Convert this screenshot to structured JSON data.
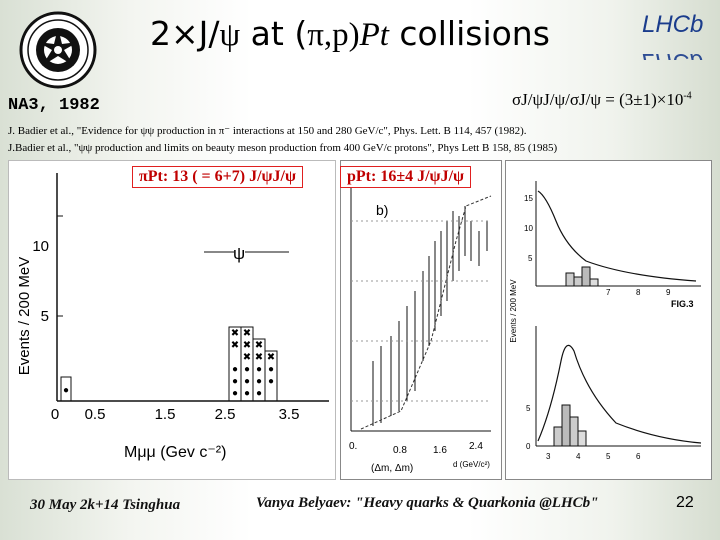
{
  "slide": {
    "title_prefix": "2×J/",
    "title_psi": "ψ",
    "title_mid": " at (",
    "title_beam": "π,p)",
    "title_target": "Pt",
    "title_suffix": " collisions",
    "ratio_text": "σJ/ψJ/ψ/σJ/ψ = (3±1)×10",
    "ratio_exp": "-4",
    "section_label": "NA3, 1982",
    "ref1": "J. Badier et al., \"Evidence for ψψ production in π⁻ interactions at 150 and 280 GeV/c\", Phys. Lett. B 114, 457 (1982).",
    "ref2": "J.Badier et al., \"ψψ production and limits on beauty meson production from 400 GeV/c protons\", Phys Lett B 158, 85 (1985)",
    "label_pi": "πPt: 13 ( = 6+7) J/ψJ/ψ",
    "label_p": "pPt: 16±4 J/ψJ/ψ",
    "footer_date": "30 May 2k+14 Tsinghua",
    "footer_author": "Vanya Belyaev: \"Heavy quarks & Quarkonia @LHCb\"",
    "page_number": "22",
    "logo_right_text": "LHCb"
  },
  "chart_data": [
    {
      "type": "bar",
      "ylabel": "Events / 200 MeV",
      "xlabel": "Mμμ (Gev c⁻²)",
      "y_ticks": [
        "5",
        "10"
      ],
      "x_ticks": [
        "0",
        "0.5",
        "1.5",
        "2.5",
        "3.5"
      ],
      "annotation": "ψ",
      "series": [
        {
          "name": "●",
          "values": [
            1,
            0,
            0,
            0,
            0,
            1,
            2,
            3,
            2,
            1
          ]
        },
        {
          "name": "×",
          "values": [
            0,
            0,
            0,
            0,
            0,
            1,
            2,
            2,
            1,
            0
          ]
        }
      ],
      "categories": [
        "0.1",
        "0.3",
        "0.5",
        "0.9",
        "1.5",
        "2.5",
        "2.7",
        "2.9",
        "3.1",
        "3.3"
      ]
    },
    {
      "type": "scatter",
      "annotation": "b)",
      "x_ticks": [
        "0.",
        "0.8",
        "1.6",
        "2.4"
      ],
      "xlabel": "(Δm, Δm)",
      "x_unit": "d (GeV/c²)"
    },
    {
      "type": "line",
      "ylabel": "Events / 200 MeV",
      "y_ticks": [
        "15",
        "10",
        "5",
        "5",
        "0"
      ],
      "x_ticks_top": [
        "7",
        "8",
        "9"
      ],
      "x_ticks_bottom": [
        "3",
        "4",
        "5",
        "6"
      ],
      "fig_label": "FIG.3"
    }
  ]
}
